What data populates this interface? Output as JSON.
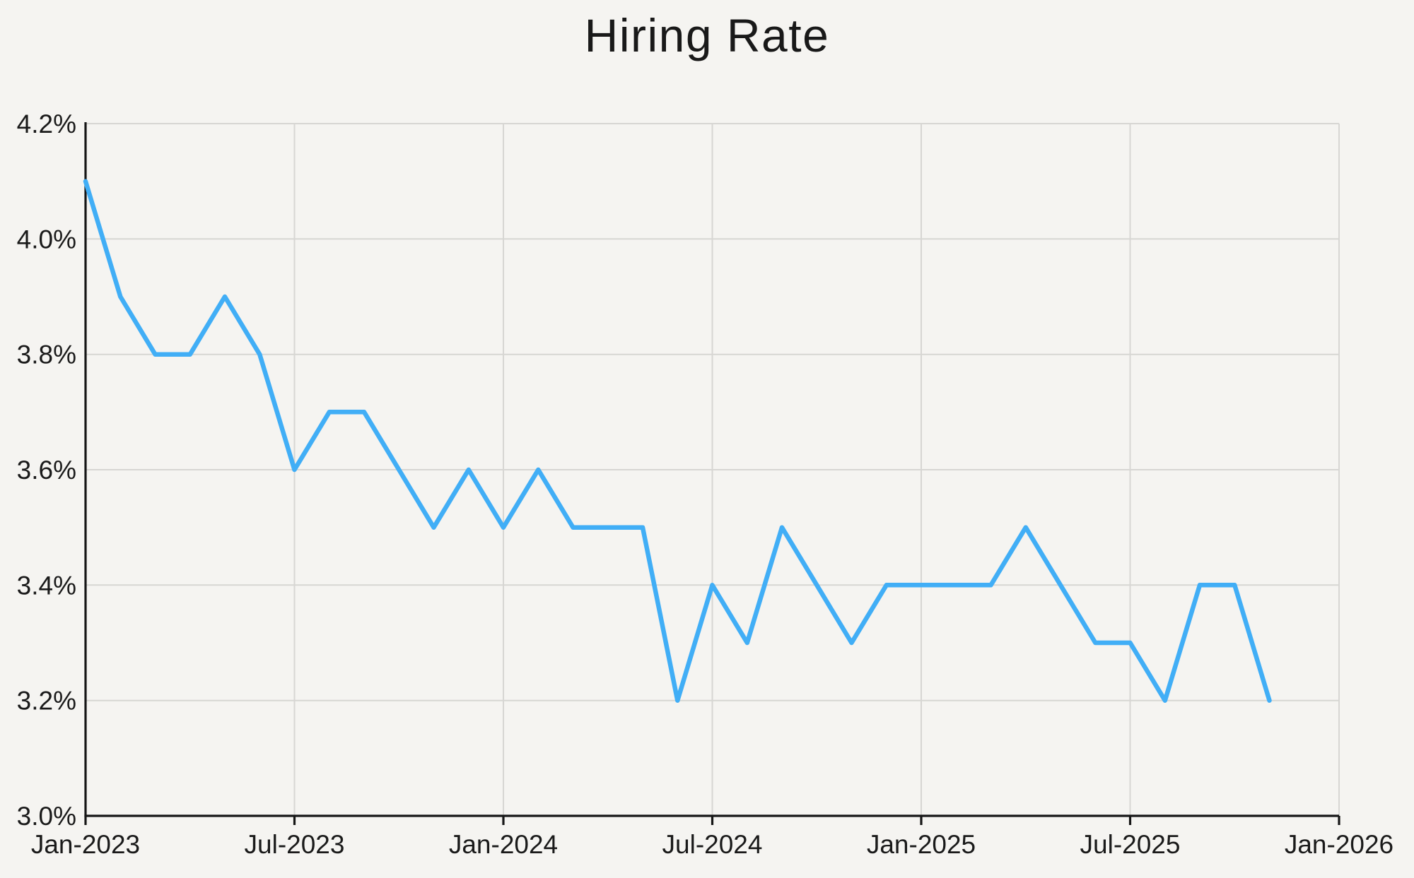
{
  "chart_data": {
    "type": "line",
    "title": "Hiring Rate",
    "x_axis": {
      "tick_labels": [
        "Jan-2023",
        "Jul-2023",
        "Jan-2024",
        "Jul-2024",
        "Jan-2025",
        "Jul-2025",
        "Jan-2026"
      ],
      "total_months_span": 36,
      "grid": true
    },
    "y_axis": {
      "tick_labels": [
        "3.0%",
        "3.2%",
        "3.4%",
        "3.6%",
        "3.8%",
        "4.0%",
        "4.2%"
      ],
      "min": 3.0,
      "max": 4.2,
      "tick_step": 0.2,
      "unit": "%",
      "grid": true
    },
    "series": [
      {
        "name": "Hiring Rate",
        "color": "#41aef6",
        "x": [
          "Jan-2023",
          "Feb-2023",
          "Mar-2023",
          "Apr-2023",
          "May-2023",
          "Jun-2023",
          "Jul-2023",
          "Aug-2023",
          "Sep-2023",
          "Oct-2023",
          "Nov-2023",
          "Dec-2023",
          "Jan-2024",
          "Feb-2024",
          "Mar-2024",
          "Apr-2024",
          "May-2024",
          "Jun-2024",
          "Jul-2024",
          "Aug-2024",
          "Sep-2024",
          "Oct-2024",
          "Nov-2024",
          "Dec-2024",
          "Jan-2025",
          "Feb-2025",
          "Mar-2025",
          "Apr-2025",
          "May-2025",
          "Jun-2025",
          "Jul-2025",
          "Aug-2025",
          "Sep-2025",
          "Oct-2025",
          "Nov-2025"
        ],
        "values": [
          4.1,
          3.9,
          3.8,
          3.8,
          3.9,
          3.8,
          3.6,
          3.7,
          3.7,
          3.6,
          3.5,
          3.6,
          3.5,
          3.6,
          3.5,
          3.5,
          3.5,
          3.2,
          3.4,
          3.3,
          3.5,
          3.4,
          3.3,
          3.4,
          3.4,
          3.4,
          3.4,
          3.5,
          3.4,
          3.3,
          3.3,
          3.2,
          3.4,
          3.4,
          3.2
        ]
      }
    ],
    "legend": "none",
    "colors": {
      "background": "#f5f4f1",
      "grid": "#d7d6d3",
      "axis": "#161616",
      "text": "#1a1a1a",
      "line": "#41aef6"
    }
  }
}
